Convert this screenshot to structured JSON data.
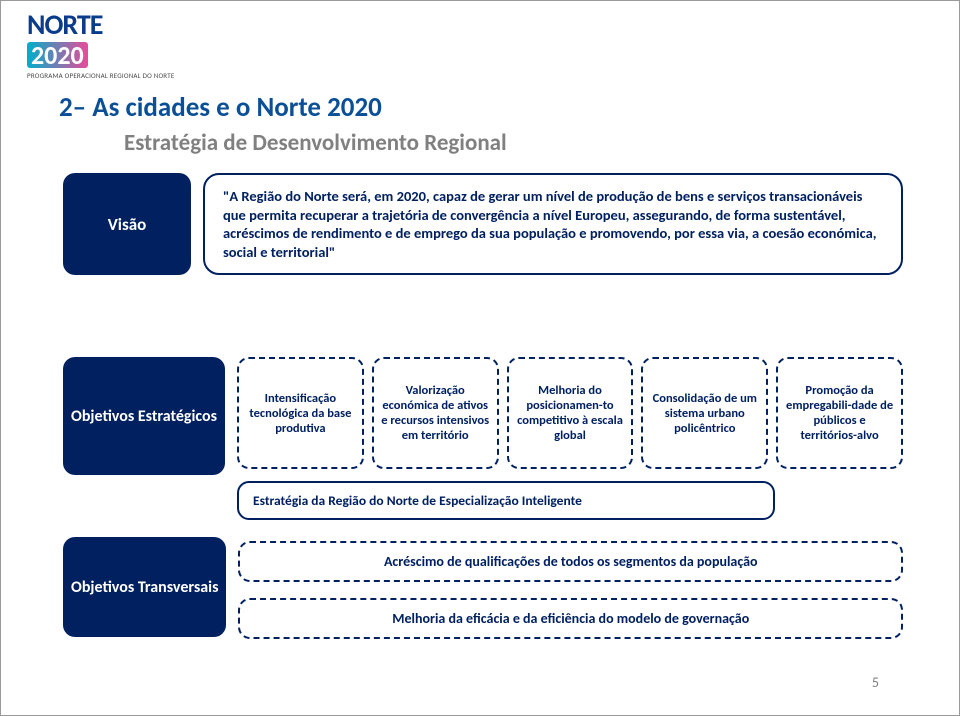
{
  "logo": {
    "line1": "NORTE",
    "line2": "2020",
    "sub": "PROGRAMA OPERACIONAL REGIONAL DO NORTE"
  },
  "title": "2– As cidades e o Norte 2020",
  "subtitle": "Estratégia de Desenvolvimento Regional",
  "visao": {
    "label": "Visão",
    "text": "\"A Região do Norte será, em 2020, capaz de gerar um nível de produção de bens e serviços transacionáveis que permita recuperar a trajetória de convergência a nível Europeu, assegurando, de forma sustentável, acréscimos de rendimento e de emprego da sua população e promovendo, por essa via, a coesão económica, social e territorial\""
  },
  "estrategicos": {
    "label": "Objetivos Estratégicos",
    "boxes": [
      "Intensificação tecnológica da base produtiva",
      "Valorização económica de ativos e recursos intensivos em território",
      "Melhoria do posicionamen-to competitivo à escala global",
      "Consolidação de um sistema urbano policêntrico",
      "Promoção da empregabili-dade de públicos e territórios-alvo"
    ],
    "stripe": "Estratégia da Região do Norte de Especialização Inteligente"
  },
  "transversais": {
    "label": "Objetivos Transversais",
    "items": [
      "Acréscimo de qualificações de todos os segmentos da população",
      "Melhoria da eficácia e da eficiência do modelo de governação"
    ]
  },
  "pageNumber": "5",
  "colors": {
    "primary": "#002060",
    "titleBlue": "#0b5097",
    "gray": "#808080",
    "bg": "#ffffff"
  }
}
